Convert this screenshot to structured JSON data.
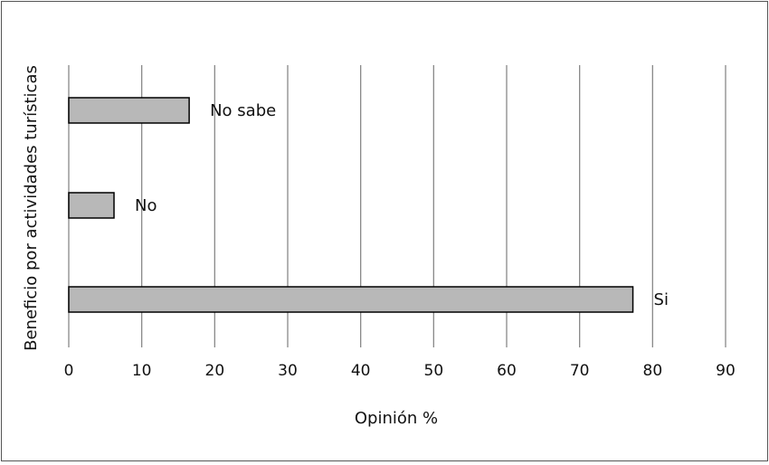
{
  "chart_data": {
    "type": "bar",
    "orientation": "horizontal",
    "title": "",
    "xlabel": "Opinión %",
    "ylabel": "Beneficio por actividades turísticas",
    "xlim": [
      0,
      90
    ],
    "x_ticks": [
      "0",
      "10",
      "20",
      "30",
      "40",
      "50",
      "60",
      "70",
      "80",
      "90"
    ],
    "grid": "vertical",
    "categories": [
      "No sabe",
      "No",
      "Si"
    ],
    "values": [
      16.5,
      6.2,
      77.3
    ],
    "colors": {
      "bar_fill": "#b8b8b8",
      "bar_stroke": "#000000",
      "grid": "#888888"
    }
  }
}
